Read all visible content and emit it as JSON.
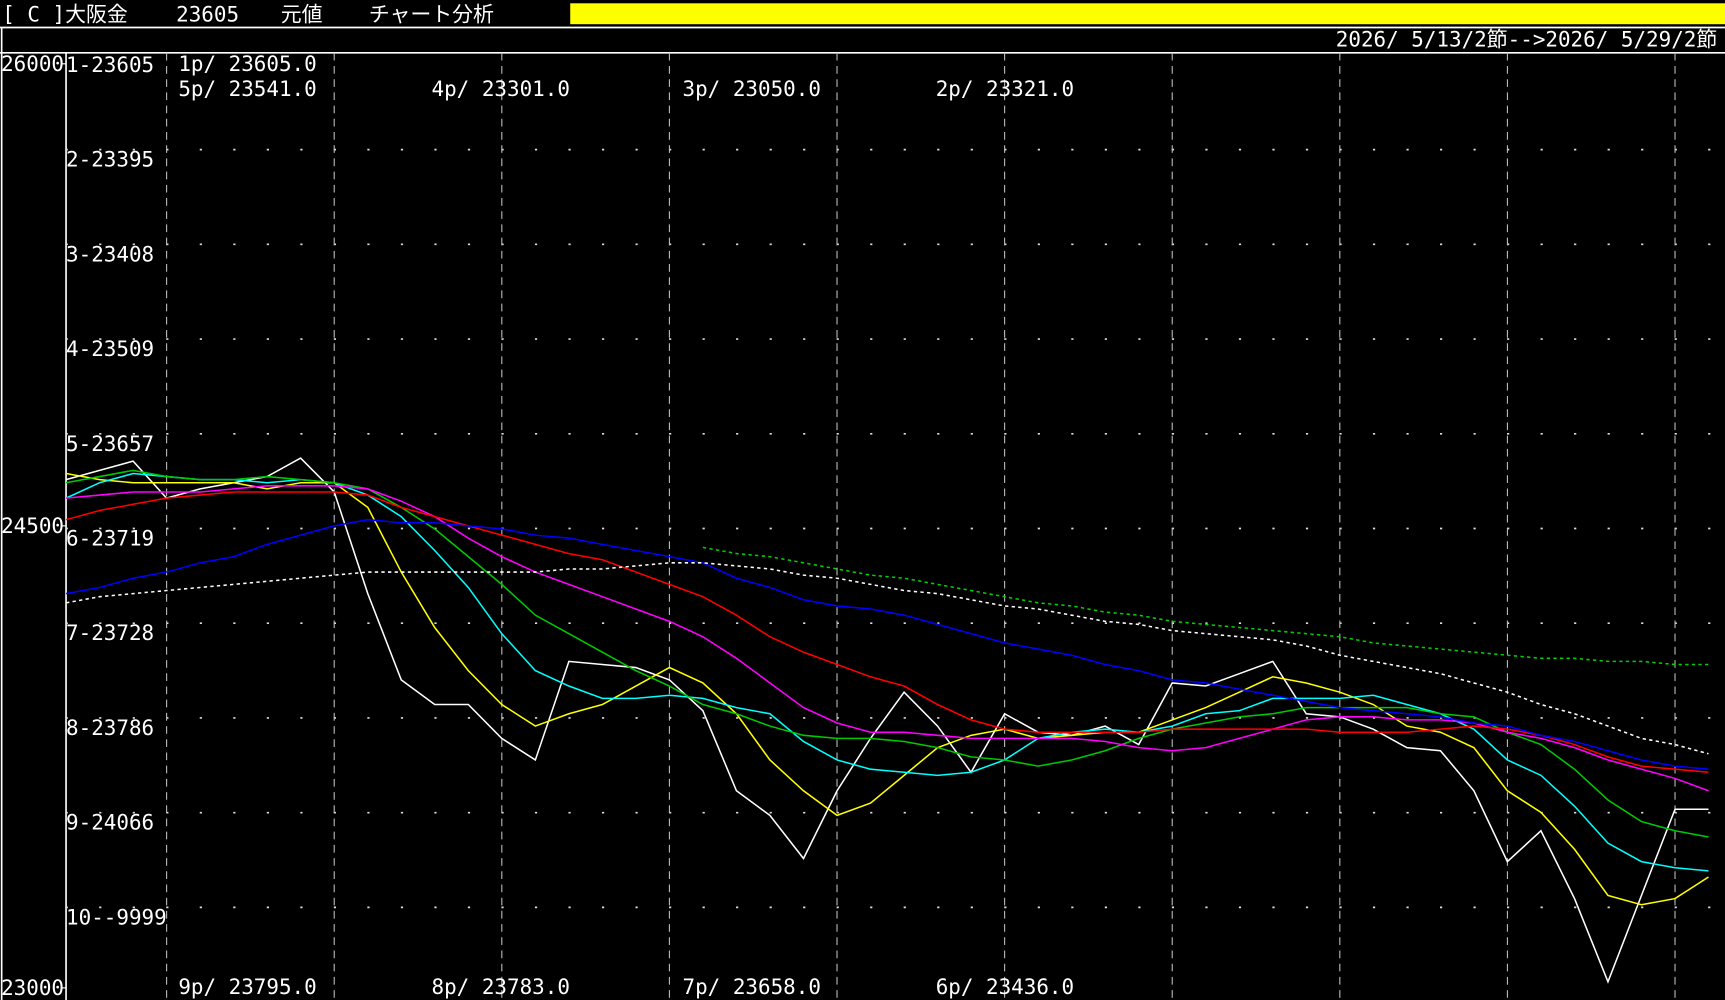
{
  "header": {
    "symbol": "[ C ]大阪金",
    "price": "23605",
    "mode": "元値",
    "title": "チャート分析"
  },
  "date_range": "2026/ 5/13/2節-->2026/ 5/29/2節",
  "row_labels": [
    "1-23605",
    "2-23395",
    "3-23408",
    "4-23509",
    "5-23657",
    "6-23719",
    "7-23728",
    "8-23786",
    "9-24066",
    "10--9999"
  ],
  "price_labels_top": [
    "1p/ 23605.0",
    "5p/ 23541.0",
    "4p/ 23301.0",
    "3p/ 23050.0",
    "2p/ 23321.0"
  ],
  "price_labels_bottom": [
    "9p/ 23795.0",
    "8p/ 23783.0",
    "7p/ 23658.0",
    "6p/ 23436.0"
  ],
  "chart_data": {
    "type": "line",
    "ylim": [
      23000,
      26000
    ],
    "yticks": [
      23000,
      24500,
      26000
    ],
    "grid": true,
    "categories": [
      null,
      null,
      null,
      null,
      null,
      null,
      null,
      null,
      null,
      null,
      null,
      null,
      null,
      null,
      null,
      null,
      null,
      null,
      null,
      null,
      null,
      null,
      null,
      null,
      null,
      null,
      null,
      null,
      null,
      null,
      null,
      null,
      null,
      null,
      null,
      null,
      null,
      null,
      null,
      null,
      null,
      null,
      null,
      null,
      null,
      null,
      null,
      null,
      null,
      null
    ],
    "series": [
      {
        "color": "#ffffff",
        "style": "solid",
        "values": [
          24650,
          24680,
          24710,
          24590,
          24620,
          24640,
          24660,
          24720,
          24610,
          24280,
          24000,
          23920,
          23920,
          23810,
          23740,
          24060,
          24050,
          24040,
          24000,
          23900,
          23640,
          23560,
          23420,
          23640,
          23810,
          23960,
          23850,
          23700,
          23890,
          23830,
          23820,
          23850,
          23790,
          23990,
          23980,
          24020,
          24060,
          23890,
          23880,
          23840,
          23780,
          23770,
          23640,
          23410,
          23510,
          23290,
          23020,
          23300,
          23580,
          23580
        ]
      },
      {
        "color": "#ffff00",
        "style": "solid",
        "values": [
          24670,
          24650,
          24640,
          24640,
          24640,
          24640,
          24620,
          24640,
          24640,
          24560,
          24350,
          24170,
          24030,
          23920,
          23850,
          23890,
          23920,
          23980,
          24040,
          23990,
          23890,
          23740,
          23640,
          23560,
          23600,
          23690,
          23780,
          23820,
          23840,
          23810,
          23820,
          23830,
          23830,
          23870,
          23910,
          23960,
          24010,
          23990,
          23960,
          23920,
          23850,
          23830,
          23780,
          23640,
          23570,
          23450,
          23300,
          23270,
          23290,
          23360
        ]
      },
      {
        "color": "#00ffff",
        "style": "solid",
        "values": [
          24590,
          24640,
          24670,
          24660,
          24650,
          24650,
          24640,
          24650,
          24640,
          24600,
          24530,
          24420,
          24300,
          24150,
          24030,
          23980,
          23940,
          23940,
          23950,
          23940,
          23910,
          23890,
          23800,
          23740,
          23710,
          23700,
          23690,
          23700,
          23740,
          23810,
          23830,
          23840,
          23830,
          23850,
          23890,
          23900,
          23940,
          23940,
          23940,
          23950,
          23920,
          23890,
          23840,
          23740,
          23690,
          23590,
          23470,
          23410,
          23390,
          23380
        ]
      },
      {
        "color": "#00c800",
        "style": "solid",
        "values": [
          24640,
          24660,
          24680,
          24660,
          24650,
          24650,
          24660,
          24650,
          24640,
          24620,
          24560,
          24490,
          24400,
          24310,
          24210,
          24150,
          24090,
          24030,
          23980,
          23920,
          23890,
          23850,
          23820,
          23810,
          23810,
          23800,
          23780,
          23750,
          23740,
          23720,
          23740,
          23770,
          23810,
          23840,
          23860,
          23880,
          23890,
          23910,
          23910,
          23910,
          23910,
          23890,
          23880,
          23830,
          23790,
          23710,
          23610,
          23540,
          23510,
          23490
        ]
      },
      {
        "color": "#ff00ff",
        "style": "solid",
        "values": [
          24590,
          24600,
          24610,
          24610,
          24610,
          24620,
          24630,
          24630,
          24630,
          24620,
          24580,
          24530,
          24460,
          24400,
          24350,
          24310,
          24270,
          24230,
          24190,
          24140,
          24070,
          23990,
          23910,
          23860,
          23830,
          23830,
          23820,
          23810,
          23810,
          23810,
          23810,
          23800,
          23780,
          23770,
          23780,
          23810,
          23840,
          23870,
          23880,
          23880,
          23870,
          23870,
          23860,
          23830,
          23810,
          23780,
          23740,
          23710,
          23680,
          23640
        ]
      },
      {
        "color": "#ff0000",
        "style": "solid",
        "values": [
          24520,
          24550,
          24570,
          24590,
          24600,
          24610,
          24610,
          24610,
          24610,
          24600,
          24560,
          24530,
          24500,
          24470,
          24440,
          24410,
          24390,
          24350,
          24310,
          24270,
          24210,
          24140,
          24090,
          24050,
          24010,
          23980,
          23920,
          23870,
          23840,
          23830,
          23830,
          23830,
          23830,
          23840,
          23840,
          23840,
          23840,
          23840,
          23830,
          23830,
          23830,
          23840,
          23850,
          23840,
          23820,
          23790,
          23750,
          23720,
          23710,
          23700
        ]
      },
      {
        "color": "#0000ff",
        "style": "solid",
        "values": [
          24280,
          24300,
          24330,
          24350,
          24380,
          24400,
          24440,
          24470,
          24500,
          24520,
          24510,
          24510,
          24500,
          24490,
          24470,
          24460,
          24440,
          24420,
          24400,
          24380,
          24330,
          24300,
          24260,
          24240,
          24230,
          24210,
          24180,
          24150,
          24120,
          24100,
          24080,
          24050,
          24030,
          24000,
          23990,
          23970,
          23950,
          23930,
          23910,
          23900,
          23890,
          23880,
          23860,
          23850,
          23820,
          23800,
          23770,
          23740,
          23720,
          23710
        ]
      },
      {
        "color": "#ffffff",
        "style": "dotted",
        "values": [
          24250,
          24270,
          24280,
          24290,
          24300,
          24310,
          24320,
          24330,
          24340,
          24350,
          24350,
          24350,
          24350,
          24350,
          24350,
          24360,
          24360,
          24370,
          24380,
          24380,
          24370,
          24360,
          24340,
          24330,
          24310,
          24290,
          24280,
          24260,
          24240,
          24230,
          24210,
          24190,
          24180,
          24160,
          24150,
          24140,
          24130,
          24110,
          24080,
          24060,
          24040,
          24020,
          23990,
          23960,
          23920,
          23890,
          23850,
          23810,
          23790,
          23760
        ]
      },
      {
        "color": "#00d000",
        "style": "dotted",
        "values": [
          null,
          null,
          null,
          null,
          null,
          null,
          null,
          null,
          null,
          null,
          null,
          null,
          null,
          null,
          null,
          null,
          null,
          null,
          null,
          24430,
          24410,
          24400,
          24380,
          24360,
          24340,
          24330,
          24310,
          24290,
          24270,
          24250,
          24240,
          24220,
          24210,
          24190,
          24180,
          24170,
          24160,
          24150,
          24140,
          24120,
          24110,
          24100,
          24090,
          24080,
          24070,
          24070,
          24060,
          24060,
          24050,
          24050
        ]
      }
    ]
  }
}
